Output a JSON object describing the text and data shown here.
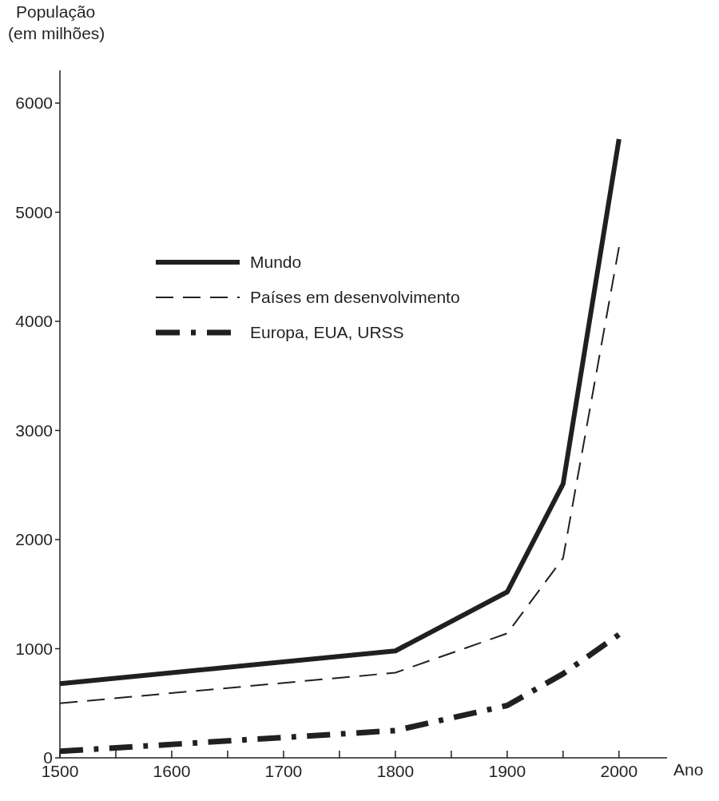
{
  "chart_data": {
    "type": "line",
    "ylabel": "População\n(em milhões)",
    "xlabel": "Ano",
    "x": [
      1500,
      1800,
      1900,
      1950,
      2000
    ],
    "xlim": [
      1500,
      2043
    ],
    "xticks": [
      1500,
      {
        "value": 1550,
        "label": null
      },
      1600,
      {
        "value": 1650,
        "label": null
      },
      1700,
      {
        "value": 1750,
        "label": null
      },
      1800,
      {
        "value": 1850,
        "label": null
      },
      1900,
      {
        "value": 1950,
        "label": null
      },
      2000
    ],
    "ylim": [
      0,
      6300
    ],
    "yticks": [
      0,
      1000,
      2000,
      3000,
      4000,
      5000,
      6000
    ],
    "grid": false,
    "legend": "top left",
    "series": [
      {
        "name": "Mundo",
        "color": "#231f20",
        "line_style": "solid",
        "values": [
          680,
          980,
          1520,
          2510,
          5670
        ]
      },
      {
        "name": "Países em desenvolvimento",
        "color": "#231f20",
        "line_style": "dashed",
        "values": [
          500,
          780,
          1140,
          1830,
          4680
        ]
      },
      {
        "name": "Europa, EUA, URSS",
        "color": "#231f20",
        "line_style": "dashdot",
        "values": [
          60,
          250,
          480,
          770,
          1130
        ]
      }
    ]
  }
}
